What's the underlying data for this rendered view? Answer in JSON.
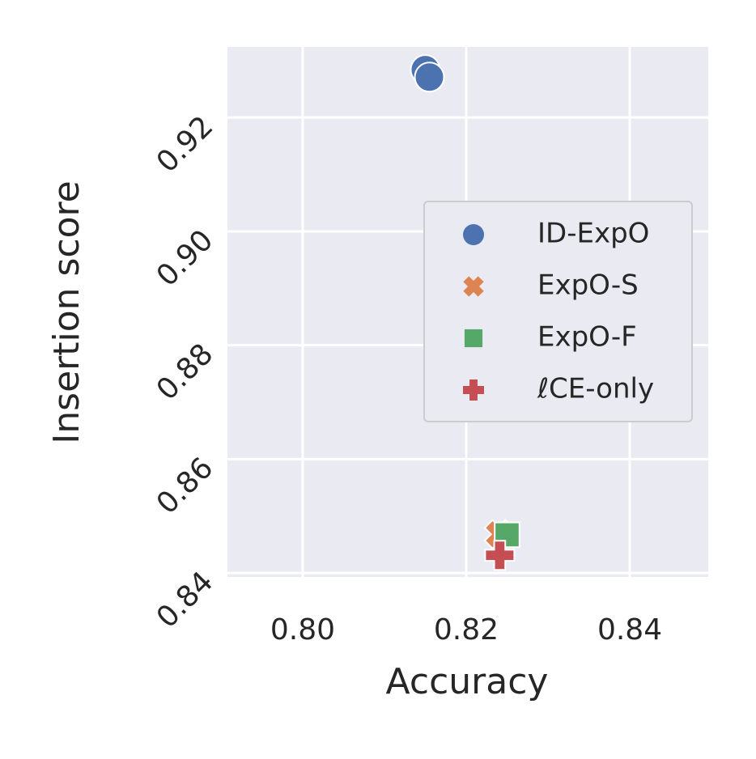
{
  "chart_data": {
    "type": "scatter",
    "x_label": "Accuracy",
    "y_label": "Insertion score",
    "xlim": [
      0.7908,
      0.8496
    ],
    "ylim": [
      0.8393,
      0.9324
    ],
    "xticks": [
      {
        "value": 0.8,
        "label": "0.80"
      },
      0.82,
      0.84
    ],
    "yticks": [
      0.84,
      0.86,
      0.88,
      {
        "value": 0.9,
        "label": "0.90"
      },
      0.92
    ],
    "grid": true,
    "legend": "right",
    "series": [
      {
        "name": "ID-ExpO",
        "color": "#4c72b0",
        "marker": "circle",
        "x": [
          0.815,
          0.8155
        ],
        "values": [
          0.9284,
          0.9271
        ]
      },
      {
        "name": "ExpO-S",
        "color": "#dd8452",
        "marker": "x",
        "x": [
          0.824
        ],
        "values": [
          0.8468
        ]
      },
      {
        "name": "ExpO-F",
        "color": "#55a868",
        "marker": "square",
        "x": [
          0.825
        ],
        "values": [
          0.8467
        ]
      },
      {
        "name": "ℓCE-only",
        "color": "#c44e52",
        "marker": "plus",
        "x": [
          0.8241
        ],
        "values": [
          0.8431
        ]
      }
    ]
  }
}
